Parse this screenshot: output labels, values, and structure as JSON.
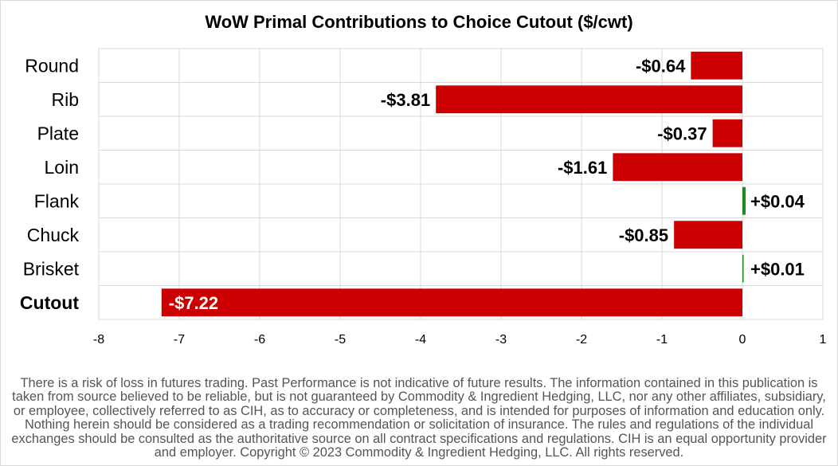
{
  "chart_data": {
    "type": "bar",
    "orientation": "horizontal",
    "title": "WoW Primal Contributions to Choice Cutout ($/cwt)",
    "categories": [
      "Round",
      "Rib",
      "Plate",
      "Loin",
      "Flank",
      "Chuck",
      "Brisket",
      "Cutout"
    ],
    "values": [
      -0.64,
      -3.81,
      -0.37,
      -1.61,
      0.04,
      -0.85,
      0.01,
      -7.22
    ],
    "labels": [
      "-$0.64",
      "-$3.81",
      "-$0.37",
      "-$1.61",
      "+$0.04",
      "-$0.85",
      "+$0.01",
      "-$7.22"
    ],
    "xlim": [
      -8,
      1
    ],
    "xticks": [
      -8,
      -7,
      -6,
      -5,
      -4,
      -3,
      -2,
      -1,
      0,
      1
    ],
    "grid": true,
    "legend": "none",
    "xlabel": "",
    "ylabel": "",
    "colors": {
      "negative": "#cc0000",
      "positive": "#1e8a1e",
      "grid": "#d9d9d9"
    }
  },
  "disclaimer": "There is a risk of loss in futures trading. Past Performance is not indicative of future results. The information contained in this publication is taken from source believed to be reliable, but is not guaranteed by Commodity & Ingredient Hedging, LLC, nor any other affiliates, subsidiary, or employee, collectively referred to as CIH, as to accuracy or completeness, and is intended for purposes of information and education only. Nothing herein should be considered as a trading recommendation or solicitation of insurance. The rules and regulations of the individual exchanges should be consulted as the authoritative source on all contract specifications and regulations. CIH is an equal opportunity provider and employer. Copyright © 2023 Commodity & Ingredient Hedging, LLC. All rights reserved."
}
